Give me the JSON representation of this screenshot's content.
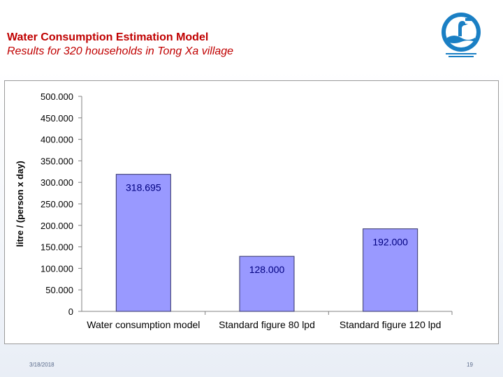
{
  "slide": {
    "title": "Water Consumption Estimation Model",
    "subtitle": "Results for 320 households in Tong Xa village",
    "date": "3/18/2018",
    "page_number": "19",
    "logo_icon": "heron-water-logo-icon",
    "logo_color": "#1a7fc4"
  },
  "chart_data": {
    "type": "bar",
    "title": "",
    "xlabel": "",
    "ylabel": "litre / (person x day)",
    "categories": [
      "Water consumption model",
      "Standard figure 80 lpd",
      "Standard figure 120 lpd"
    ],
    "values": [
      318.695,
      128.0,
      192.0
    ],
    "value_labels": [
      "318.695",
      "128.000",
      "192.000"
    ],
    "ylim": [
      0,
      500
    ],
    "yticks": [
      0,
      50,
      100,
      150,
      200,
      250,
      300,
      350,
      400,
      450,
      500
    ],
    "ytick_labels": [
      "0",
      "50.000",
      "100.000",
      "150.000",
      "200.000",
      "250.000",
      "300.000",
      "350.000",
      "400.000",
      "450.000",
      "500.000"
    ],
    "grid": false,
    "legend": "none",
    "bar_color": "#9999ff",
    "bar_edge_color": "#333366"
  }
}
